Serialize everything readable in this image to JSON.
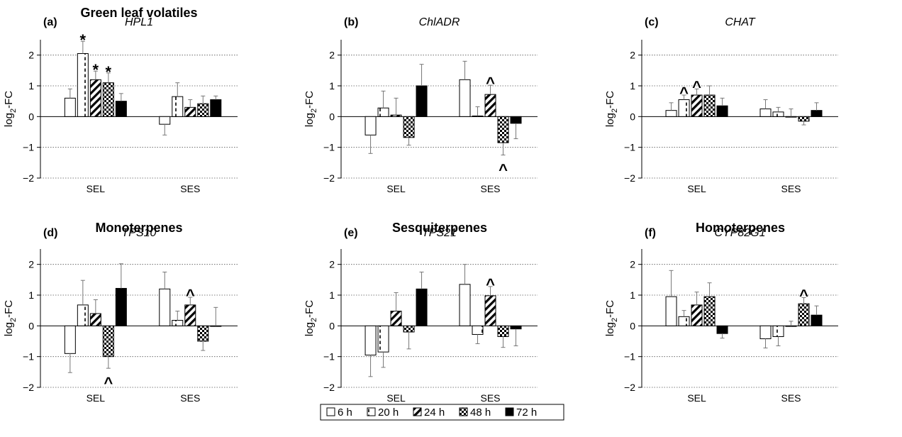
{
  "chart_data": [
    {
      "type": "bar",
      "panel": "(a)",
      "gene": "HPL1",
      "group_title": "Green leaf volatiles",
      "categories": [
        "SEL",
        "SES"
      ],
      "ylabel": "log2-FC",
      "ylim": [
        -2,
        2.5
      ],
      "yticks": [
        -2,
        -1,
        0,
        1,
        2
      ],
      "grid": true,
      "series": [
        {
          "name": "6 h",
          "values": [
            0.6,
            -0.25
          ],
          "errors": [
            0.3,
            0.35
          ],
          "marks": [
            "",
            ""
          ]
        },
        {
          "name": "20 h",
          "values": [
            2.05,
            0.65
          ],
          "errors": [
            0.4,
            0.45
          ],
          "marks": [
            "*",
            ""
          ]
        },
        {
          "name": "24 h",
          "values": [
            1.2,
            0.3
          ],
          "errors": [
            0.28,
            0.25
          ],
          "marks": [
            "*",
            ""
          ]
        },
        {
          "name": "48 h",
          "values": [
            1.1,
            0.42
          ],
          "errors": [
            0.32,
            0.25
          ],
          "marks": [
            "*",
            ""
          ]
        },
        {
          "name": "72 h",
          "values": [
            0.5,
            0.55
          ],
          "errors": [
            0.25,
            0.12
          ],
          "marks": [
            "",
            ""
          ]
        }
      ]
    },
    {
      "type": "bar",
      "panel": "(b)",
      "gene": "ChlADR",
      "group_title": "",
      "categories": [
        "SEL",
        "SES"
      ],
      "ylabel": "log2-FC",
      "ylim": [
        -2,
        2.5
      ],
      "yticks": [
        -2,
        -1,
        0,
        1,
        2
      ],
      "grid": true,
      "series": [
        {
          "name": "6 h",
          "values": [
            -0.6,
            1.2
          ],
          "errors": [
            0.6,
            0.6
          ],
          "marks": [
            "",
            ""
          ]
        },
        {
          "name": "20 h",
          "values": [
            0.28,
            0.02
          ],
          "errors": [
            0.55,
            0.3
          ],
          "marks": [
            "",
            ""
          ]
        },
        {
          "name": "24 h",
          "values": [
            0.05,
            0.72
          ],
          "errors": [
            0.55,
            0.3
          ],
          "marks": [
            "",
            "^"
          ]
        },
        {
          "name": "48 h",
          "values": [
            -0.68,
            -0.85
          ],
          "errors": [
            0.25,
            0.4
          ],
          "marks": [
            "",
            "^"
          ]
        },
        {
          "name": "72 h",
          "values": [
            1.0,
            -0.22
          ],
          "errors": [
            0.7,
            0.5
          ],
          "marks": [
            "",
            ""
          ]
        }
      ]
    },
    {
      "type": "bar",
      "panel": "(c)",
      "gene": "CHAT",
      "group_title": "",
      "categories": [
        "SEL",
        "SES"
      ],
      "ylabel": "log2-FC",
      "ylim": [
        -2,
        2.5
      ],
      "yticks": [
        -2,
        -1,
        0,
        1,
        2
      ],
      "grid": true,
      "series": [
        {
          "name": "6 h",
          "values": [
            0.2,
            0.25
          ],
          "errors": [
            0.25,
            0.3
          ],
          "marks": [
            "",
            ""
          ]
        },
        {
          "name": "20 h",
          "values": [
            0.55,
            0.15
          ],
          "errors": [
            0.15,
            0.15
          ],
          "marks": [
            "^",
            ""
          ]
        },
        {
          "name": "24 h",
          "values": [
            0.7,
            0.0
          ],
          "errors": [
            0.2,
            0.25
          ],
          "marks": [
            "^",
            ""
          ]
        },
        {
          "name": "48 h",
          "values": [
            0.7,
            -0.15
          ],
          "errors": [
            0.3,
            0.12
          ],
          "marks": [
            "",
            ""
          ]
        },
        {
          "name": "72 h",
          "values": [
            0.35,
            0.2
          ],
          "errors": [
            0.25,
            0.25
          ],
          "marks": [
            "",
            ""
          ]
        }
      ]
    },
    {
      "type": "bar",
      "panel": "(d)",
      "gene": "TPS10",
      "group_title": "Monoterpenes",
      "categories": [
        "SEL",
        "SES"
      ],
      "ylabel": "log2-FC",
      "ylim": [
        -2,
        2.5
      ],
      "yticks": [
        -2,
        -1,
        0,
        1,
        2
      ],
      "grid": true,
      "series": [
        {
          "name": "6 h",
          "values": [
            -0.9,
            1.2
          ],
          "errors": [
            0.62,
            0.55
          ],
          "marks": [
            "",
            ""
          ]
        },
        {
          "name": "20 h",
          "values": [
            0.68,
            0.18
          ],
          "errors": [
            0.8,
            0.3
          ],
          "marks": [
            "",
            ""
          ]
        },
        {
          "name": "24 h",
          "values": [
            0.4,
            0.68
          ],
          "errors": [
            0.45,
            0.25
          ],
          "marks": [
            "",
            "^"
          ]
        },
        {
          "name": "48 h",
          "values": [
            -1.0,
            -0.5
          ],
          "errors": [
            0.38,
            0.3
          ],
          "marks": [
            "^",
            ""
          ]
        },
        {
          "name": "72 h",
          "values": [
            1.22,
            0.0
          ],
          "errors": [
            0.8,
            0.6
          ],
          "marks": [
            "",
            ""
          ]
        }
      ]
    },
    {
      "type": "bar",
      "panel": "(e)",
      "gene": "TPS21",
      "group_title": "Sesquiterpenes",
      "categories": [
        "SEL",
        "SES"
      ],
      "ylabel": "log2-FC",
      "ylim": [
        -2,
        2.5
      ],
      "yticks": [
        -2,
        -1,
        0,
        1,
        2
      ],
      "grid": true,
      "series": [
        {
          "name": "6 h",
          "values": [
            -0.95,
            1.35
          ],
          "errors": [
            0.7,
            0.65
          ],
          "marks": [
            "",
            ""
          ]
        },
        {
          "name": "20 h",
          "values": [
            -0.85,
            -0.28
          ],
          "errors": [
            0.5,
            0.3
          ],
          "marks": [
            "",
            ""
          ]
        },
        {
          "name": "24 h",
          "values": [
            0.48,
            0.98
          ],
          "errors": [
            0.6,
            0.3
          ],
          "marks": [
            "",
            "^"
          ]
        },
        {
          "name": "48 h",
          "values": [
            -0.2,
            -0.35
          ],
          "errors": [
            0.55,
            0.35
          ],
          "marks": [
            "",
            ""
          ]
        },
        {
          "name": "72 h",
          "values": [
            1.2,
            -0.1
          ],
          "errors": [
            0.55,
            0.55
          ],
          "marks": [
            "",
            ""
          ]
        }
      ]
    },
    {
      "type": "bar",
      "panel": "(f)",
      "gene": "CYP82G1",
      "group_title": "Homoterpenes",
      "categories": [
        "SEL",
        "SES"
      ],
      "ylabel": "log2-FC",
      "ylim": [
        -2,
        2.5
      ],
      "yticks": [
        -2,
        -1,
        0,
        1,
        2
      ],
      "grid": true,
      "series": [
        {
          "name": "6 h",
          "values": [
            0.95,
            -0.42
          ],
          "errors": [
            0.85,
            0.3
          ],
          "marks": [
            "",
            ""
          ]
        },
        {
          "name": "20 h",
          "values": [
            0.3,
            -0.35
          ],
          "errors": [
            0.2,
            0.3
          ],
          "marks": [
            "",
            ""
          ]
        },
        {
          "name": "24 h",
          "values": [
            0.68,
            0.0
          ],
          "errors": [
            0.42,
            0.15
          ],
          "marks": [
            "",
            ""
          ]
        },
        {
          "name": "48 h",
          "values": [
            0.95,
            0.72
          ],
          "errors": [
            0.45,
            0.2
          ],
          "marks": [
            "",
            "^"
          ]
        },
        {
          "name": "72 h",
          "values": [
            -0.25,
            0.35
          ],
          "errors": [
            0.15,
            0.3
          ],
          "marks": [
            "",
            ""
          ]
        }
      ]
    }
  ],
  "legend": {
    "placement": "bottom-center",
    "items": [
      "6 h",
      "20 h",
      "24 h",
      "48 h",
      "72 h"
    ]
  }
}
